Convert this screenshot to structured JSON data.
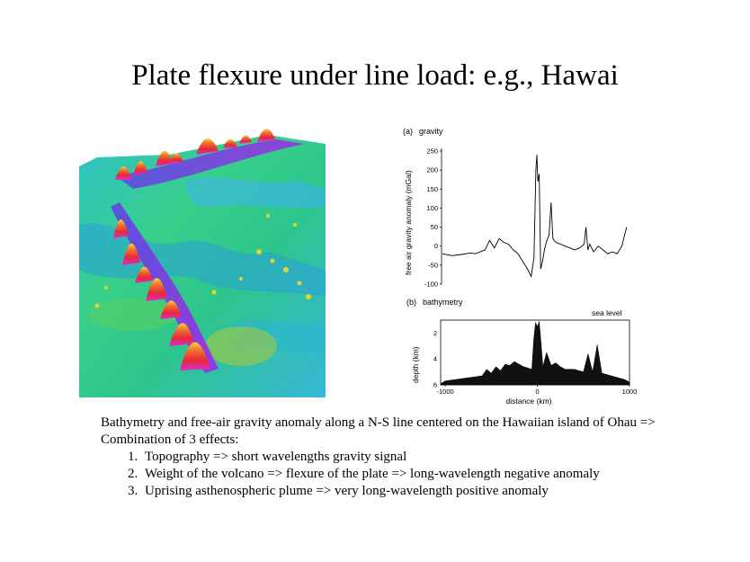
{
  "slide": {
    "title": "Plate flexure under line load: e.g., Hawai"
  },
  "figure": {
    "panel_a": {
      "label": "(a)",
      "title": "gravity",
      "ylabel": "free air gravity anomaly (mGal)",
      "yticks": [
        "250",
        "200",
        "150",
        "100",
        "50",
        "0",
        "-50",
        "-100"
      ]
    },
    "panel_b": {
      "label": "(b)",
      "title": "bathymetry",
      "sea_level": "sea level",
      "ylabel": "depth (km)",
      "yticks": [
        "2",
        "4",
        "6"
      ],
      "xticks": [
        "-1000",
        "0",
        "1000"
      ],
      "xlabel": "distance (km)"
    }
  },
  "caption": {
    "intro": "Bathymetry and free-air gravity anomaly along a N-S line centered on the Hawaiian island of Ohau => Combination of 3 effects:",
    "items": [
      "Topography => short wavelengths gravity signal",
      "Weight of the volcano => flexure of the plate => long-wavelength negative anomaly",
      "Uprising asthenospheric plume => very long-wavelength positive anomaly"
    ]
  },
  "chart_data": [
    {
      "type": "line",
      "title": "gravity",
      "xlabel": "",
      "ylabel": "free air gravity anomaly (mGal)",
      "ylim": [
        -100,
        250
      ],
      "xlim": [
        -1000,
        1000
      ],
      "x": [
        -1000,
        -900,
        -800,
        -700,
        -650,
        -600,
        -550,
        -500,
        -450,
        -400,
        -350,
        -300,
        -250,
        -200,
        -150,
        -100,
        -60,
        -30,
        -10,
        0,
        10,
        25,
        40,
        60,
        80,
        100,
        130,
        150,
        170,
        200,
        250,
        300,
        350,
        400,
        450,
        500,
        520,
        540,
        560,
        600,
        650,
        700,
        750,
        800,
        850,
        900,
        950
      ],
      "series": [
        {
          "values": [
            -20,
            -25,
            -22,
            -18,
            -20,
            -15,
            -10,
            15,
            -5,
            20,
            10,
            5,
            -10,
            -20,
            -40,
            -60,
            -80,
            -30,
            200,
            240,
            170,
            190,
            -60,
            -40,
            -10,
            10,
            30,
            115,
            20,
            10,
            5,
            0,
            -5,
            -10,
            -5,
            5,
            50,
            -10,
            5,
            -15,
            0,
            -10,
            -20,
            -15,
            -20,
            0,
            50
          ]
        }
      ]
    },
    {
      "type": "area",
      "title": "bathymetry",
      "xlabel": "distance (km)",
      "ylabel": "depth (km)",
      "ylim": [
        6,
        1
      ],
      "xlim": [
        -1000,
        1000
      ],
      "x": [
        -1050,
        -1000,
        -900,
        -800,
        -700,
        -600,
        -550,
        -500,
        -450,
        -400,
        -350,
        -300,
        -250,
        -200,
        -150,
        -100,
        -60,
        -40,
        -20,
        0,
        20,
        40,
        60,
        100,
        150,
        200,
        250,
        300,
        400,
        500,
        550,
        600,
        650,
        700,
        800,
        900,
        950,
        1000
      ],
      "series": [
        {
          "values": [
            5.9,
            5.7,
            5.6,
            5.5,
            5.4,
            5.3,
            4.8,
            5.1,
            4.6,
            4.9,
            4.4,
            4.5,
            4.2,
            4.4,
            4.6,
            4.7,
            4.8,
            2.5,
            1.2,
            1.5,
            1.1,
            2.8,
            4.6,
            3.5,
            4.5,
            4.3,
            4.6,
            4.8,
            4.8,
            5.0,
            3.6,
            5.0,
            2.9,
            5.1,
            5.3,
            5.5,
            5.6,
            5.8
          ]
        }
      ]
    }
  ]
}
